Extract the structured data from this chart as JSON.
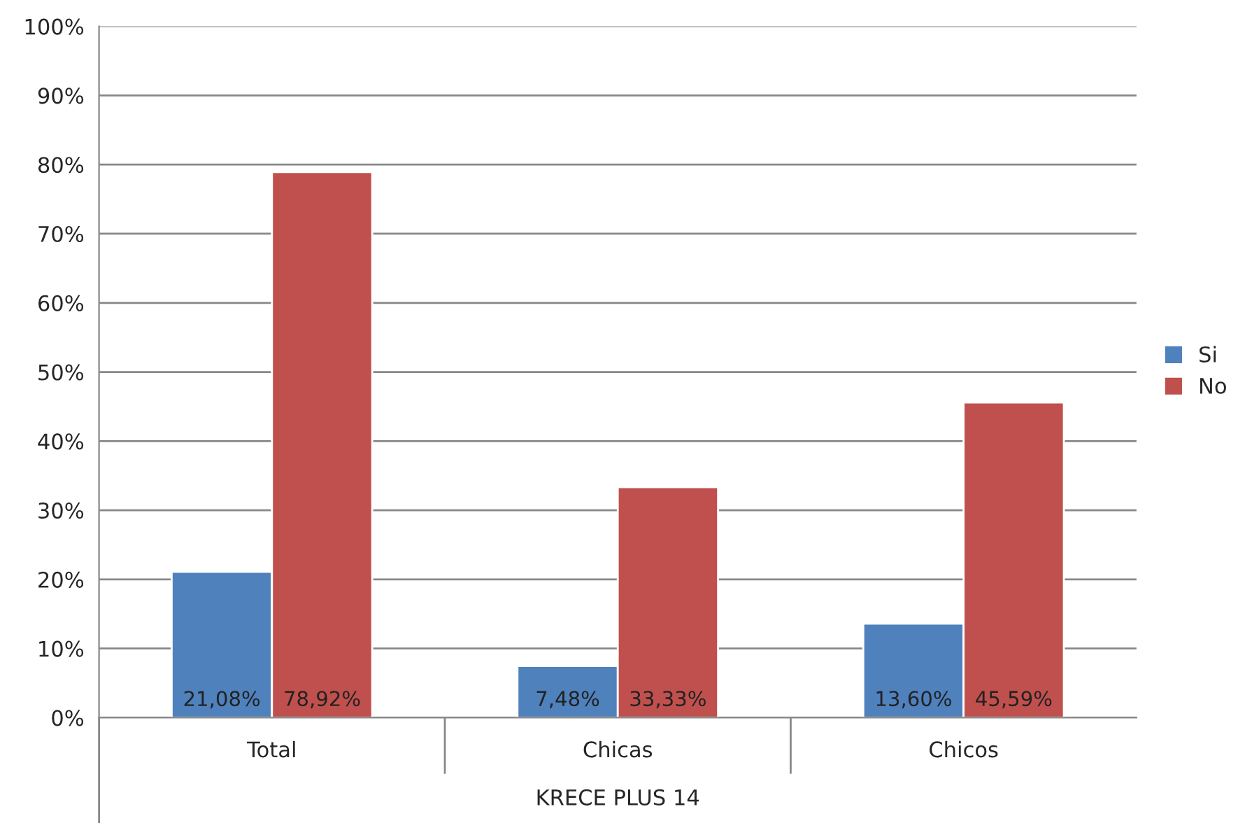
{
  "chart_data": {
    "type": "bar",
    "categories": [
      "Total",
      "Chicas",
      "Chicos"
    ],
    "xlabel": "KRECE PLUS 14",
    "series": [
      {
        "name": "Si",
        "color": "#4f81bd",
        "values": [
          21.08,
          7.48,
          13.6
        ],
        "value_labels": [
          "21,08%",
          "7,48%",
          "13,60%"
        ]
      },
      {
        "name": "No",
        "color": "#c0504d",
        "values": [
          78.92,
          33.33,
          45.59
        ],
        "value_labels": [
          "78,92%",
          "33,33%",
          "45,59%"
        ]
      }
    ],
    "ylim": [
      0,
      100
    ],
    "yticks": [
      {
        "value": 0,
        "label": "0%"
      },
      {
        "value": 10,
        "label": "10%"
      },
      {
        "value": 20,
        "label": "20%"
      },
      {
        "value": 30,
        "label": "30%"
      },
      {
        "value": 40,
        "label": "40%"
      },
      {
        "value": 50,
        "label": "50%"
      },
      {
        "value": 60,
        "label": "60%"
      },
      {
        "value": 70,
        "label": "70%"
      },
      {
        "value": 80,
        "label": "80%"
      },
      {
        "value": 90,
        "label": "90%"
      },
      {
        "value": 100,
        "label": "100%"
      }
    ],
    "grid": "y",
    "legend": "right"
  }
}
